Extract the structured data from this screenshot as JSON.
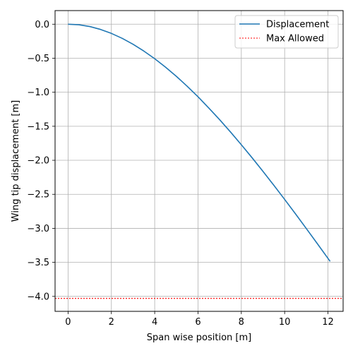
{
  "chart_data": {
    "type": "line",
    "xlabel": "Span wise position [m]",
    "ylabel": "Wing tip displacement [m]",
    "xlim": [
      -0.6,
      12.7
    ],
    "ylim": [
      -4.22,
      0.2
    ],
    "xticks": [
      0,
      2,
      4,
      6,
      8,
      10,
      12
    ],
    "yticks": [
      0.0,
      -0.5,
      -1.0,
      -1.5,
      -2.0,
      -2.5,
      -3.0,
      -3.5,
      -4.0
    ],
    "xtick_labels": [
      "0",
      "2",
      "4",
      "6",
      "8",
      "10",
      "12"
    ],
    "ytick_labels": [
      "0.0",
      "−0.5",
      "−1.0",
      "−1.5",
      "−2.0",
      "−2.5",
      "−3.0",
      "−3.5",
      "−4.0"
    ],
    "grid": true,
    "legend_position": "top-right",
    "series": [
      {
        "name": "Displacement",
        "color": "#1f77b4",
        "style": "solid",
        "x": [
          0,
          0.5,
          1,
          1.5,
          2,
          2.5,
          3,
          3.5,
          4,
          4.5,
          5,
          5.5,
          6,
          6.5,
          7,
          7.5,
          8,
          8.5,
          9,
          9.5,
          10,
          10.5,
          11,
          11.5,
          12,
          12.1
        ],
        "y": [
          0,
          -0.008,
          -0.034,
          -0.077,
          -0.135,
          -0.208,
          -0.295,
          -0.395,
          -0.507,
          -0.631,
          -0.766,
          -0.912,
          -1.067,
          -1.232,
          -1.404,
          -1.584,
          -1.771,
          -1.964,
          -2.163,
          -2.367,
          -2.575,
          -2.787,
          -3.003,
          -3.221,
          -3.441,
          -3.485
        ]
      }
    ],
    "hlines": [
      {
        "name": "Max Allowed",
        "y": -4.03,
        "color": "#ff0000",
        "style": "dotted"
      }
    ]
  }
}
